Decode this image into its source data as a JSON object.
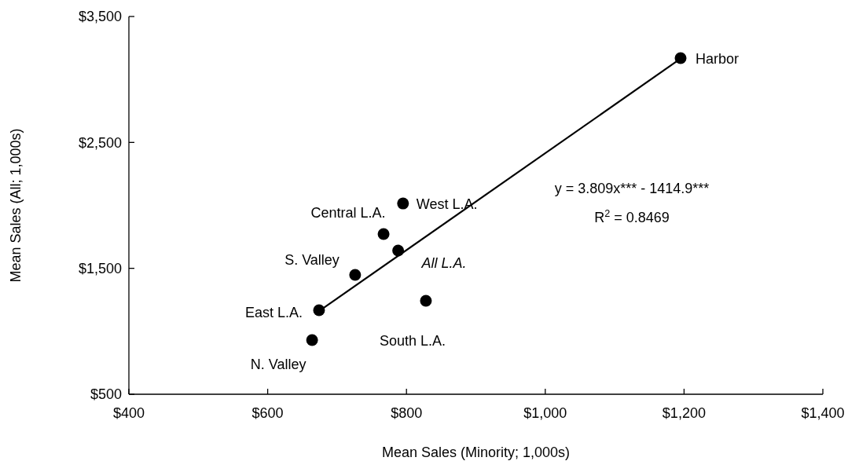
{
  "chart_data": {
    "type": "scatter",
    "xlabel": "Mean Sales (Minority; 1,000s)",
    "ylabel": "Mean Sales (All; 1,000s)",
    "xlim": [
      400,
      1400
    ],
    "ylim": [
      500,
      3500
    ],
    "xticks": [
      {
        "value": 400,
        "label": "$400"
      },
      {
        "value": 600,
        "label": "$600"
      },
      {
        "value": 800,
        "label": "$800"
      },
      {
        "value": 1000,
        "label": "$1,000"
      },
      {
        "value": 1200,
        "label": "$1,200"
      },
      {
        "value": 1400,
        "label": "$1,400"
      }
    ],
    "yticks": [
      {
        "value": 500,
        "label": "$500"
      },
      {
        "value": 1500,
        "label": "$1,500"
      },
      {
        "value": 2500,
        "label": "$2,500"
      },
      {
        "value": 3500,
        "label": "$3,500"
      }
    ],
    "grid": false,
    "series": [
      {
        "marker": "circle",
        "color": "#000000",
        "x": [
          1195,
          795,
          767,
          788,
          726,
          828,
          674,
          664
        ],
        "values": [
          3169,
          2015,
          1772,
          1641,
          1448,
          1242,
          1167,
          930
        ]
      },
      {
        "type": "line",
        "color": "#000000",
        "x": [
          674,
          1195
        ],
        "values": [
          1160,
          3165
        ]
      }
    ],
    "annotations": [
      {
        "text": "Harbor",
        "x": 1195,
        "y": 3169
      },
      {
        "text": "West L.A.",
        "x": 795,
        "y": 2015
      },
      {
        "text": "Central L.A.",
        "x": 767,
        "y": 1772
      },
      {
        "text": "All L.A.",
        "x": 788,
        "y": 1641
      },
      {
        "text": "S. Valley",
        "x": 726,
        "y": 1448
      },
      {
        "text": "South L.A.",
        "x": 828,
        "y": 1242
      },
      {
        "text": "East L.A.",
        "x": 674,
        "y": 1167
      },
      {
        "text": "N. Valley",
        "x": 664,
        "y": 930
      },
      "y = 3.809x*** - 1414.9***",
      "R$^{2}$ = 0.8469"
    ]
  }
}
